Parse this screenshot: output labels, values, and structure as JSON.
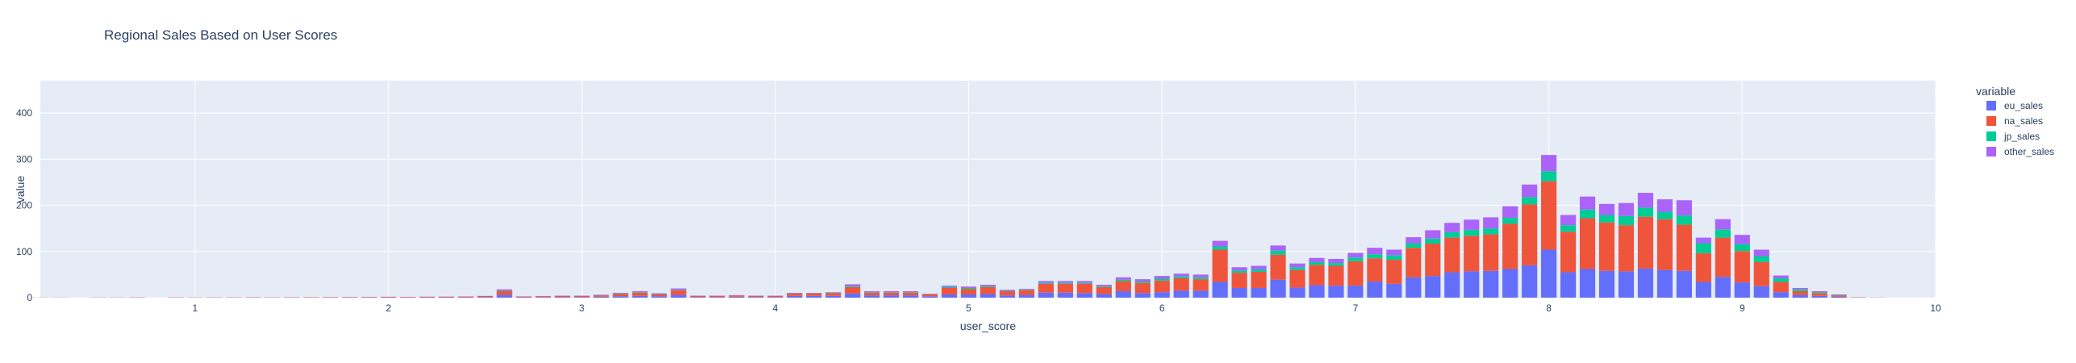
{
  "chart_data": {
    "type": "bar",
    "barmode": "stack",
    "title": "Regional Sales Based on User Scores",
    "xlabel": "user_score",
    "ylabel": "value",
    "xlim": [
      0.2,
      10
    ],
    "ylim": [
      0,
      470
    ],
    "x_ticks": [
      1,
      2,
      3,
      4,
      5,
      6,
      7,
      8,
      9,
      10
    ],
    "y_ticks": [
      0,
      100,
      200,
      300,
      400
    ],
    "grid": true,
    "legend_title": "variable",
    "legend_position": "right",
    "colors": {
      "eu_sales": "#636efa",
      "na_sales": "#EF553B",
      "jp_sales": "#00cc96",
      "other_sales": "#ab63fa",
      "plot_bg": "#E5ECF6",
      "grid": "#ffffff",
      "text": "#2a3f5f"
    },
    "x": [
      0.2,
      0.3,
      0.5,
      0.6,
      0.7,
      0.9,
      1,
      1.1,
      1.2,
      1.3,
      1.4,
      1.5,
      1.6,
      1.7,
      1.8,
      1.9,
      2,
      2.1,
      2.2,
      2.3,
      2.4,
      2.5,
      2.6,
      2.7,
      2.8,
      2.9,
      3,
      3.1,
      3.2,
      3.3,
      3.4,
      3.5,
      3.6,
      3.7,
      3.8,
      3.9,
      4,
      4.1,
      4.2,
      4.3,
      4.4,
      4.5,
      4.6,
      4.7,
      4.8,
      4.9,
      5,
      5.1,
      5.2,
      5.3,
      5.4,
      5.5,
      5.6,
      5.7,
      5.8,
      5.9,
      6,
      6.1,
      6.2,
      6.3,
      6.4,
      6.5,
      6.6,
      6.7,
      6.8,
      6.9,
      7,
      7.1,
      7.2,
      7.3,
      7.4,
      7.5,
      7.6,
      7.7,
      7.8,
      7.9,
      8,
      8.1,
      8.2,
      8.3,
      8.4,
      8.5,
      8.6,
      8.7,
      8.8,
      8.9,
      9,
      9.1,
      9.2,
      9.3,
      9.4,
      9.5,
      9.6,
      9.7
    ],
    "series": [
      {
        "name": "eu_sales",
        "values": [
          0.1,
          0.1,
          0.2,
          0.2,
          0.3,
          0.3,
          0.2,
          0.3,
          0.3,
          0.4,
          0.3,
          0.4,
          0.4,
          0.5,
          0.5,
          0.6,
          0.7,
          0.6,
          0.8,
          0.9,
          1,
          1.5,
          6,
          1,
          1.2,
          1.5,
          1.5,
          2,
          3,
          4,
          3,
          6,
          1.5,
          1.5,
          2,
          1.5,
          1.5,
          4,
          4,
          4,
          9,
          5,
          5,
          5,
          3,
          7,
          7,
          8,
          5,
          6,
          11,
          11,
          10,
          8,
          14,
          10,
          12,
          15,
          15,
          34,
          21,
          21,
          39,
          22,
          27,
          26,
          26,
          35,
          30,
          44,
          47,
          55,
          57,
          58,
          62,
          70,
          104,
          55,
          62,
          58,
          57,
          63,
          60,
          58,
          34,
          45,
          33,
          25,
          12,
          6,
          4,
          2,
          0.3,
          0.1
        ]
      },
      {
        "name": "na_sales",
        "values": [
          0.2,
          0.2,
          0.3,
          0.3,
          0.5,
          0.5,
          0.4,
          0.5,
          0.5,
          0.6,
          0.5,
          0.6,
          0.7,
          0.8,
          0.9,
          1,
          1.1,
          1,
          1.2,
          1.3,
          1.5,
          2,
          8,
          1.5,
          2,
          2.5,
          2.5,
          3,
          5,
          7,
          4,
          10,
          2.5,
          2.5,
          3,
          2.5,
          2.5,
          5,
          5,
          6,
          14,
          6,
          6,
          6,
          4,
          14,
          12,
          15,
          9,
          10,
          19,
          19,
          20,
          15,
          22,
          22,
          25,
          27,
          25,
          70,
          33,
          35,
          54,
          38,
          44,
          43,
          53,
          50,
          52,
          64,
          70,
          75,
          77,
          79,
          98,
          132,
          148,
          88,
          110,
          105,
          100,
          112,
          110,
          100,
          62,
          85,
          68,
          52,
          22,
          8,
          6,
          3,
          0.5,
          0.2
        ]
      },
      {
        "name": "jp_sales",
        "values": [
          0,
          0,
          0,
          0,
          0,
          0,
          0,
          0,
          0,
          0,
          0,
          0,
          0,
          0,
          0,
          0,
          0,
          0,
          0,
          0,
          0,
          0,
          1,
          0,
          0,
          0,
          0,
          0.5,
          1,
          1,
          1,
          1,
          0,
          0,
          0,
          0,
          0,
          0.5,
          0.5,
          1,
          2,
          1,
          1,
          1,
          0.5,
          2,
          2,
          2,
          1,
          1,
          2,
          2,
          2,
          2,
          3,
          3,
          4,
          4,
          4,
          7,
          5,
          5,
          9,
          6,
          6,
          6,
          8,
          9,
          10,
          10,
          11,
          12,
          13,
          13,
          13,
          16,
          22,
          14,
          19,
          16,
          20,
          20,
          16,
          20,
          22,
          18,
          15,
          13,
          8,
          4,
          2,
          1,
          0,
          0
        ]
      },
      {
        "name": "other_sales",
        "values": [
          0.05,
          0.05,
          0.05,
          0.05,
          0.1,
          0.1,
          0.05,
          0.1,
          0.1,
          0.1,
          0.1,
          0.1,
          0.1,
          0.1,
          0.2,
          0.2,
          0.2,
          0.2,
          0.2,
          0.2,
          0.2,
          0.3,
          3,
          0.3,
          0.4,
          0.5,
          0.5,
          1,
          1.5,
          2,
          1.5,
          3,
          0.5,
          0.5,
          0.5,
          0.5,
          0.5,
          1,
          1,
          1,
          4,
          2,
          2,
          2,
          1,
          3,
          3,
          3,
          2,
          2,
          4,
          4,
          4,
          3,
          5,
          5,
          6,
          6,
          6,
          12,
          7,
          8,
          11,
          8,
          9,
          9,
          10,
          14,
          12,
          13,
          18,
          20,
          22,
          24,
          25,
          27,
          35,
          22,
          28,
          24,
          28,
          32,
          27,
          33,
          12,
          22,
          20,
          14,
          6,
          3,
          2,
          1,
          0.2,
          0.1
        ]
      }
    ]
  }
}
